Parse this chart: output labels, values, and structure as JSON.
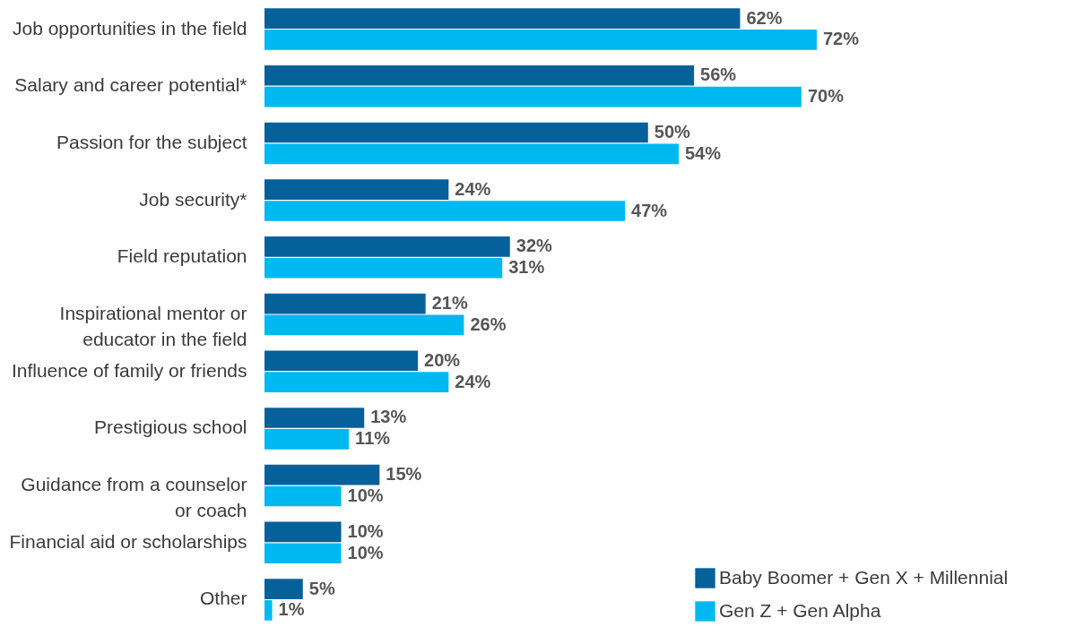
{
  "chart_data": {
    "type": "bar",
    "orientation": "horizontal",
    "categories": [
      "Job opportunities in the field",
      "Salary and career potential*",
      "Passion for the subject",
      "Job security*",
      "Field reputation",
      "Inspirational mentor or educator in the field",
      "Influence of family or friends",
      "Prestigious school",
      "Guidance from a counselor or coach",
      "Financial aid or scholarships",
      "Other"
    ],
    "series": [
      {
        "name": "Baby Boomer + Gen X + Millennial",
        "color": "#06609a",
        "values": [
          62,
          56,
          50,
          24,
          32,
          21,
          20,
          13,
          15,
          10,
          5
        ],
        "value_labels": [
          "62%",
          "56%",
          "50%",
          "24%",
          "32%",
          "21%",
          "20%",
          "13%",
          "15%",
          "10%",
          "5%"
        ]
      },
      {
        "name": "Gen Z + Gen Alpha",
        "color": "#00b8f0",
        "values": [
          72,
          70,
          54,
          47,
          31,
          26,
          24,
          11,
          10,
          10,
          1
        ],
        "value_labels": [
          "72%",
          "70%",
          "54%",
          "47%",
          "31%",
          "26%",
          "24%",
          "11%",
          "10%",
          "10%",
          "1%"
        ]
      }
    ],
    "legend": "bottom right"
  }
}
